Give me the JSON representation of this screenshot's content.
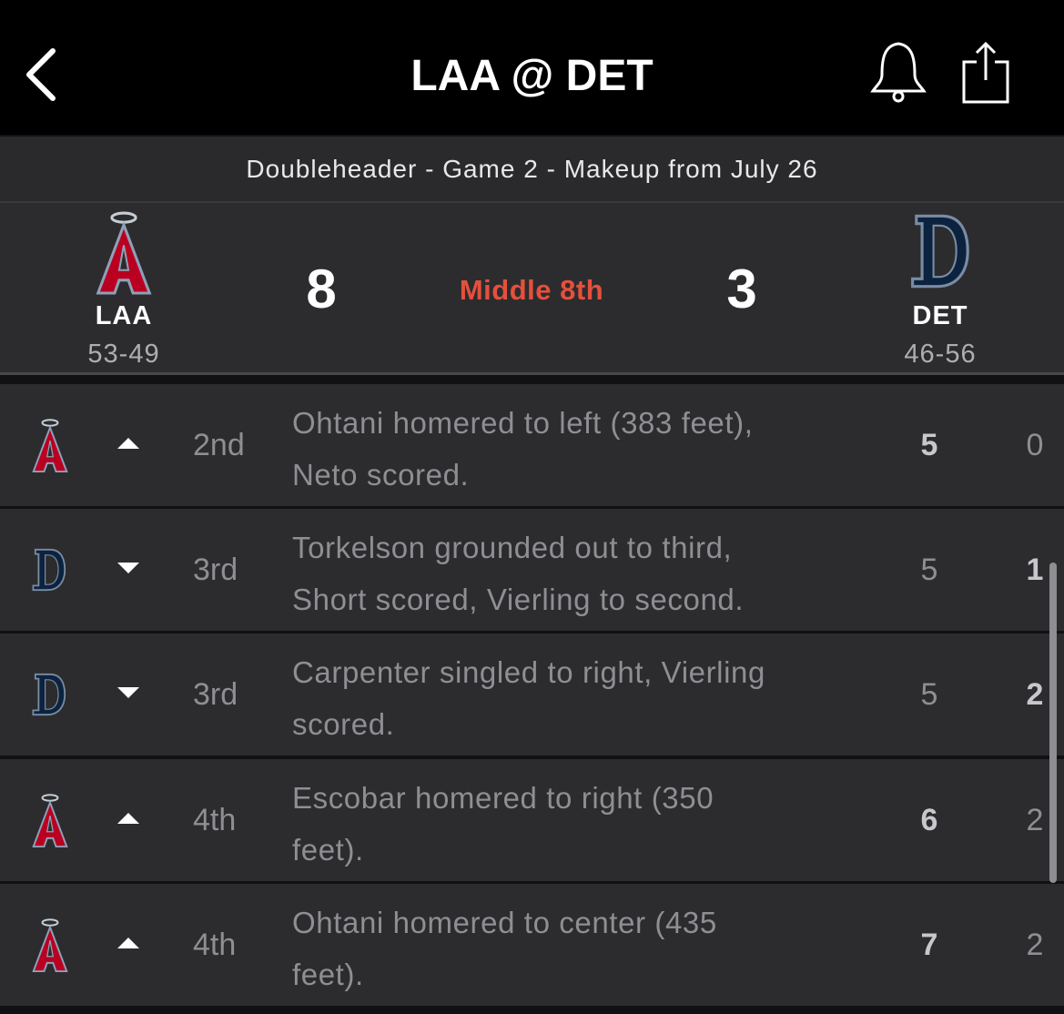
{
  "header": {
    "title": "LAA @ DET"
  },
  "subheader": "Doubleheader - Game 2 - Makeup from July 26",
  "scoreboard": {
    "away": {
      "abbr": "LAA",
      "record": "53-49",
      "score": 8,
      "logo": "angels"
    },
    "status": "Middle 8th",
    "home": {
      "abbr": "DET",
      "record": "46-56",
      "score": 3,
      "logo": "tigers"
    }
  },
  "plays": [
    {
      "team": "away",
      "half": "top",
      "inning": "2nd",
      "text": [
        "Ohtani homered to left (383 feet),",
        "Neto scored."
      ],
      "away_score": 5,
      "home_score": 0
    },
    {
      "team": "home",
      "half": "bottom",
      "inning": "3rd",
      "text": [
        "Torkelson grounded out to third,",
        "Short scored, Vierling to second."
      ],
      "away_score": 5,
      "home_score": 1
    },
    {
      "team": "home",
      "half": "bottom",
      "inning": "3rd",
      "text": [
        "Carpenter singled to right, Vierling",
        "scored."
      ],
      "away_score": 5,
      "home_score": 2
    },
    {
      "team": "away",
      "half": "top",
      "inning": "4th",
      "text": [
        "Escobar homered to right (350",
        "feet)."
      ],
      "away_score": 6,
      "home_score": 2
    },
    {
      "team": "away",
      "half": "top",
      "inning": "4th",
      "text": [
        "Ohtani homered to center (435",
        "feet)."
      ],
      "away_score": 7,
      "home_score": 2
    }
  ]
}
